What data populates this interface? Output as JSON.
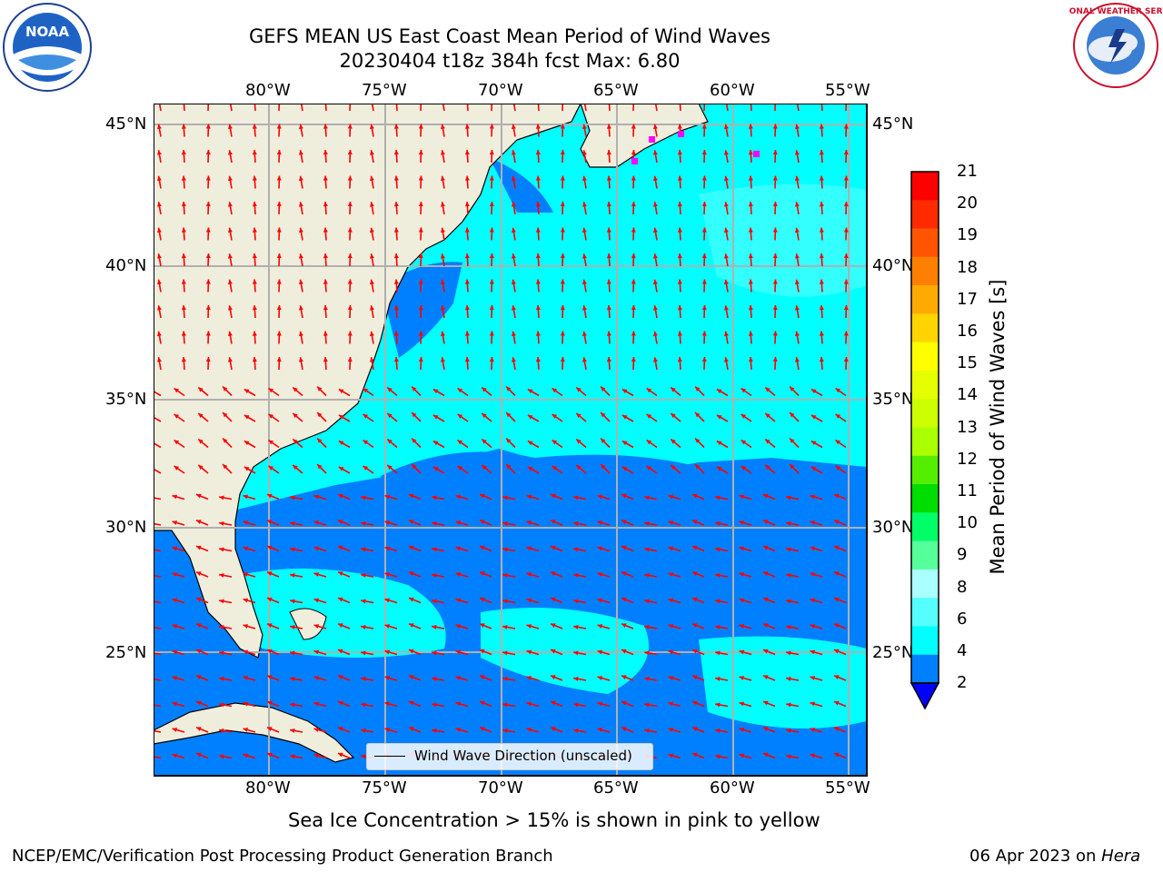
{
  "title": {
    "line1": "GEFS MEAN US East Coast Mean Period of Wind Waves",
    "line2": "20230404 t18z 384h fcst   Max: 6.80"
  },
  "logos": {
    "left": "NOAA",
    "right_ring_text": "NATIONAL WEATHER SERVICE"
  },
  "map": {
    "lon_labels": [
      "80°W",
      "75°W",
      "70°W",
      "65°W",
      "60°W",
      "55°W"
    ],
    "lat_labels": [
      "45°N",
      "40°N",
      "35°N",
      "30°N",
      "25°N"
    ],
    "extent": {
      "lon_min": -85,
      "lon_max": -54.3,
      "lat_min": 20.3,
      "lat_max": 46
    },
    "land_color": "#efeddc",
    "ocean_colors": {
      "2-4": "#0080ff",
      "4-6": "#00ffff",
      "6-8": "#33ffff"
    },
    "arrow_color": "#ff0000",
    "ice_marker_color": "#ff00ff",
    "legend_label": "Wind Wave Direction (unscaled)"
  },
  "colorbar": {
    "label": "Mean Period of Wind Waves [s]",
    "ticks": [
      "21",
      "20",
      "19",
      "18",
      "17",
      "16",
      "15",
      "14",
      "13",
      "12",
      "11",
      "10",
      "9",
      "8",
      "6",
      "4",
      "2"
    ],
    "colors": [
      "#ff0000",
      "#ff2a00",
      "#ff5500",
      "#ff8000",
      "#ffaa00",
      "#ffd400",
      "#ffff00",
      "#e6ff00",
      "#ccff00",
      "#aaff00",
      "#55ee00",
      "#00dd00",
      "#00ff66",
      "#55ff99",
      "#aaffff",
      "#55ffff",
      "#00ffff",
      "#0080ff"
    ],
    "under_color": "#0000ff"
  },
  "notes": {
    "sea_ice": "Sea Ice Concentration > 15% is shown in pink to yellow"
  },
  "footer": {
    "left": "NCEP/EMC/Verification Post Processing Product Generation Branch",
    "right_prefix": "06 Apr 2023 on ",
    "right_italic": "Hera"
  }
}
